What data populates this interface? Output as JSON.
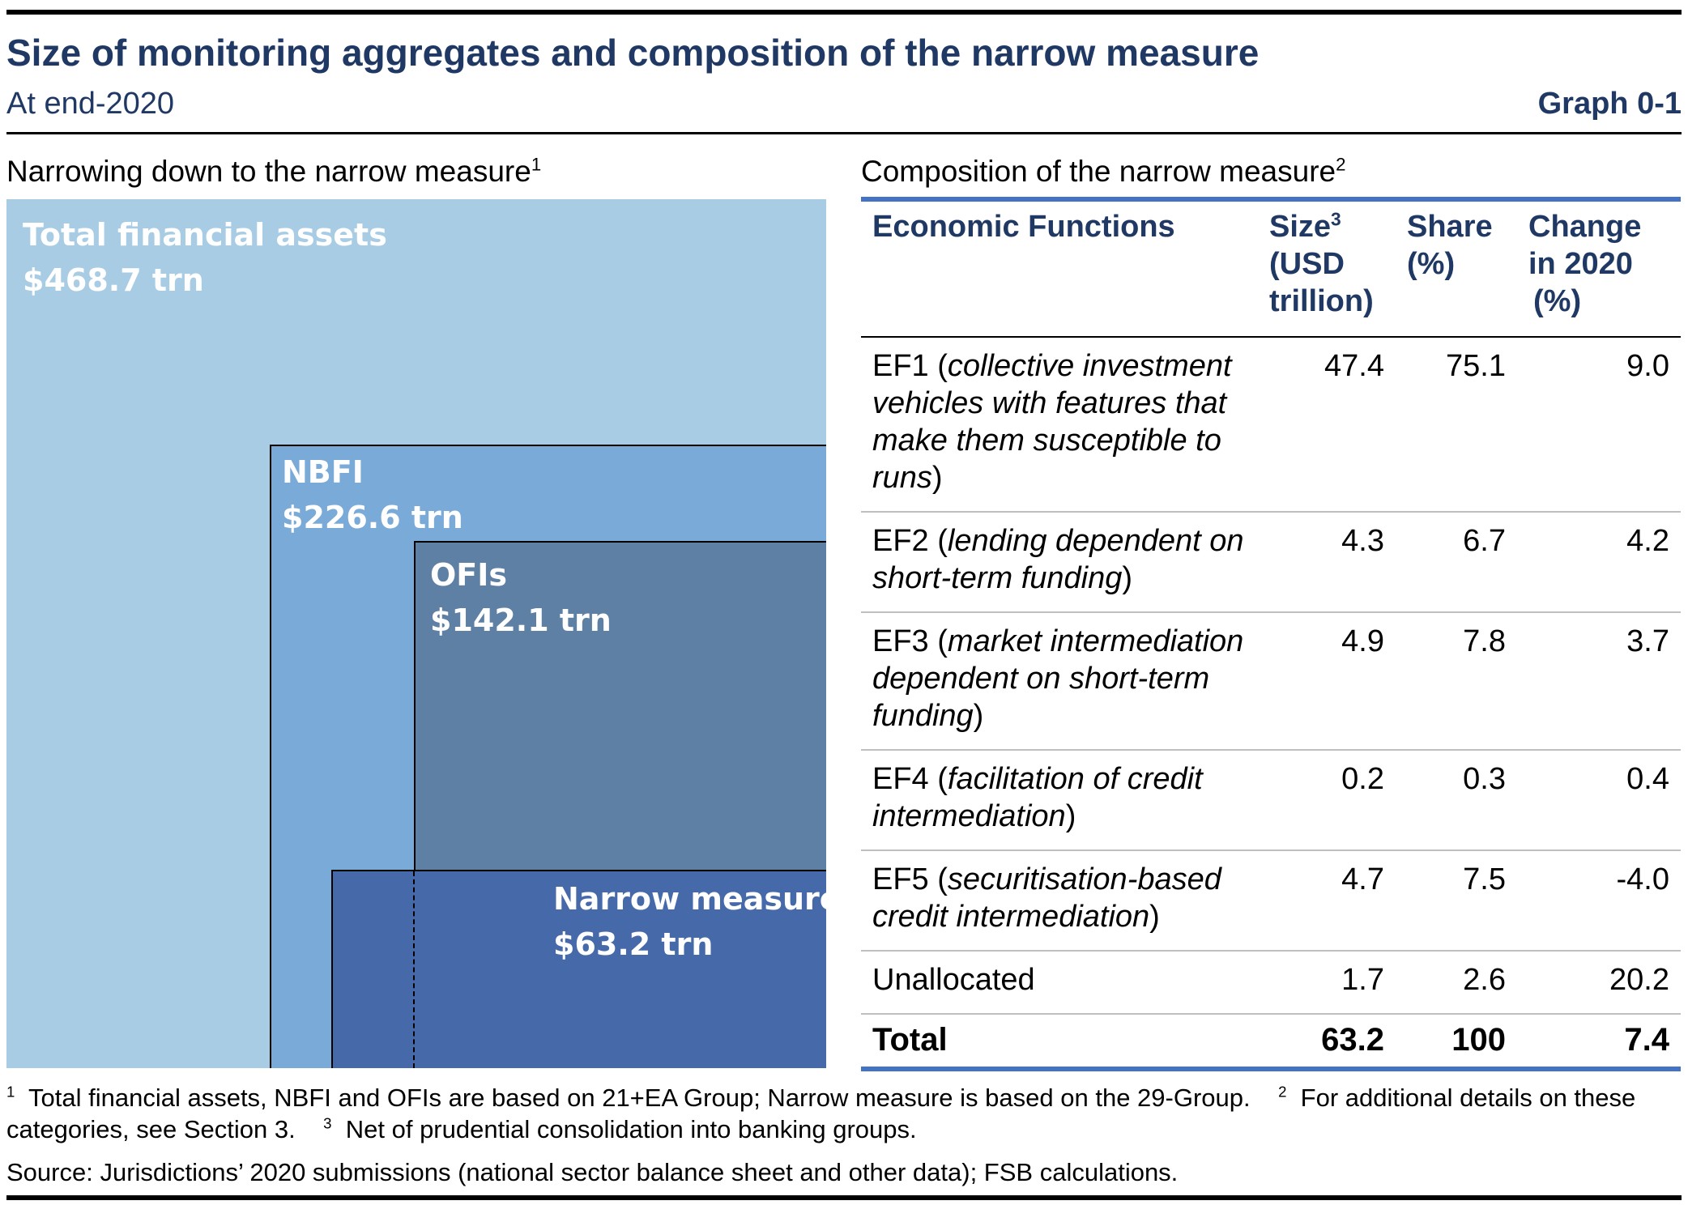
{
  "header": {
    "title": "Size of monitoring aggregates and composition of the narrow measure",
    "subtitle": "At end-2020",
    "graph_number": "Graph 0-1"
  },
  "left_panel": {
    "title": "Narrowing down to the narrow measure",
    "title_note": "1"
  },
  "right_panel": {
    "title": "Composition of the narrow measure",
    "title_note": "2"
  },
  "colors": {
    "total": "#a9cce5",
    "nbfi": "#7aaad8",
    "ofis": "#5e80a4",
    "narrow": "#466aa9",
    "heading": "#1f3864",
    "table_rule": "#4472c4"
  },
  "chart_data": {
    "type": "table",
    "nested_aggregates": [
      {
        "label": "Total financial assets",
        "value_label": "$468.7 trn",
        "value": 468.7,
        "unit": "USD trillion"
      },
      {
        "label": "NBFI",
        "value_label": "$226.6 trn",
        "value": 226.6,
        "unit": "USD trillion"
      },
      {
        "label": "OFIs",
        "value_label": "$142.1 trn",
        "value": 142.1,
        "unit": "USD trillion"
      },
      {
        "label": "Narrow measure",
        "value_label": "$63.2 trn",
        "value": 63.2,
        "unit": "USD trillion"
      }
    ],
    "table": {
      "columns": {
        "function": "Economic Functions",
        "size_l1": "Size",
        "size_note": "3",
        "size_l2": "(USD",
        "size_l3": "trillion)",
        "share_l1": "Share",
        "share_l2": "(%)",
        "change_l1": "Change",
        "change_l2": "in 2020",
        "change_l3": "(%)"
      },
      "rows": [
        {
          "code": "EF1",
          "open": " (",
          "desc": "collective investment vehicles with features that make them susceptible to runs",
          "close": ")",
          "size": "47.4",
          "share": "75.1",
          "change": "9.0"
        },
        {
          "code": "EF2",
          "open": " (",
          "desc": "lending dependent on short-term funding",
          "close": ")",
          "size": "4.3",
          "share": "6.7",
          "change": "4.2"
        },
        {
          "code": "EF3",
          "open": " (",
          "desc": "market intermediation dependent on short-term funding",
          "close": ")",
          "size": "4.9",
          "share": "7.8",
          "change": "3.7"
        },
        {
          "code": "EF4",
          "open": " (",
          "desc": "facilitation of credit intermediation",
          "close": ")",
          "size": "0.2",
          "share": "0.3",
          "change": "0.4"
        },
        {
          "code": "EF5",
          "open": " (",
          "desc": "securitisation-based credit intermediation",
          "close": ")",
          "size": "4.7",
          "share": "7.5",
          "change": "-4.0"
        },
        {
          "code": "Unallocated",
          "open": "",
          "desc": "",
          "close": "",
          "size": "1.7",
          "share": "2.6",
          "change": "20.2"
        }
      ],
      "total": {
        "label": "Total",
        "size": "63.2",
        "share": "100",
        "change": "7.4"
      }
    }
  },
  "footnotes": {
    "n1_mark": "1",
    "n1_text": "Total financial assets, NBFI and OFIs are based on 21+EA Group; Narrow measure is based on the 29-Group.",
    "n2_mark": "2",
    "n2_text": "For additional details on these categories, see Section 3.",
    "n3_mark": "3",
    "n3_text": "Net of prudential consolidation into banking groups.",
    "source": "Source: Jurisdictions’ 2020 submissions (national sector balance sheet and other data); FSB calculations."
  }
}
